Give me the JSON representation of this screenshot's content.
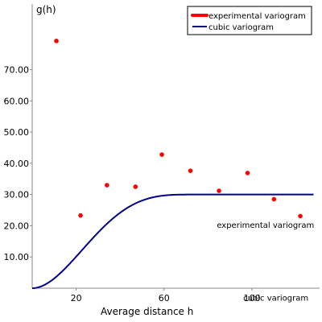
{
  "chart_data": {
    "type": "scatter",
    "title": "",
    "ylabel": "g(h)",
    "xlabel": "Average distance h",
    "xlim": [
      0,
      128
    ],
    "ylim": [
      0,
      80
    ],
    "x_ticks": [
      20,
      60,
      100
    ],
    "x_tick_labels": [
      "20",
      "60",
      "100"
    ],
    "y_ticks": [
      10,
      20,
      30,
      40,
      50,
      60,
      70
    ],
    "y_tick_labels": [
      "10.00",
      "20.00",
      "30.00",
      "40.00",
      "50.00",
      "60.00",
      "70.00"
    ],
    "grid": false,
    "legend_position": "top-right",
    "series": [
      {
        "name": "experimental variogram",
        "type": "scatter",
        "color": "#ff0000",
        "x": [
          11,
          22,
          34,
          47,
          59,
          72,
          85,
          98,
          110,
          122
        ],
        "y": [
          79.2,
          23.3,
          33.0,
          32.5,
          42.8,
          37.6,
          31.2,
          36.9,
          28.5,
          23.1
        ]
      },
      {
        "name": "cubic variogram",
        "type": "line",
        "color": "#00008b",
        "nugget": 0,
        "sill": 30,
        "range": 75,
        "x_end": 128
      }
    ],
    "annotations": [
      {
        "text": "experimental variogram",
        "x": 84,
        "y": 19.3
      },
      {
        "text": "cubic variogram",
        "x": 96,
        "y": -4
      }
    ]
  }
}
